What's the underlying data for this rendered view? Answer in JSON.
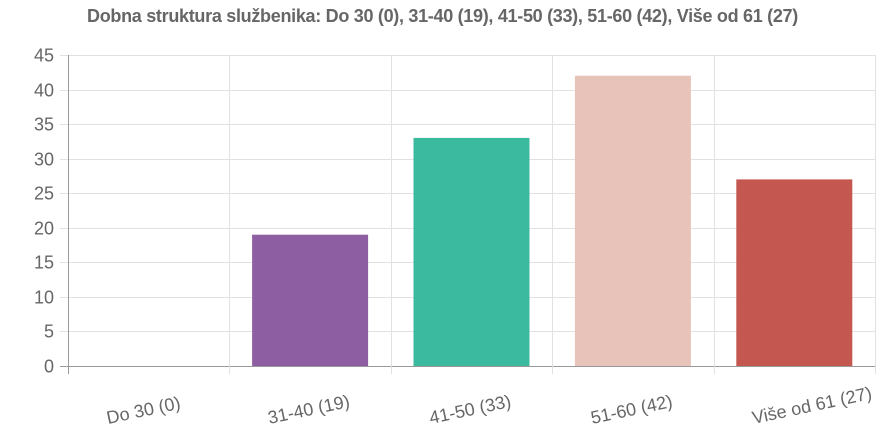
{
  "chart_data": {
    "type": "bar",
    "title": "Dobna struktura službenika: Do 30 (0), 31-40 (19), 41-50 (33), 51-60 (42), Više od 61 (27)",
    "categories": [
      "Do 30 (0)",
      "31-40 (19)",
      "41-50 (33)",
      "51-60 (42)",
      "Više od 61 (27)"
    ],
    "values": [
      0,
      19,
      33,
      42,
      27
    ],
    "colors": [
      "#3498db",
      "#8e5ea2",
      "#3cba9f",
      "#e8c3b9",
      "#c45850"
    ],
    "ylim": [
      0,
      45
    ],
    "yticks": [
      0,
      5,
      10,
      15,
      20,
      25,
      30,
      35,
      40,
      45
    ],
    "grid": true,
    "legend": "none",
    "xlabel": "",
    "ylabel": ""
  }
}
